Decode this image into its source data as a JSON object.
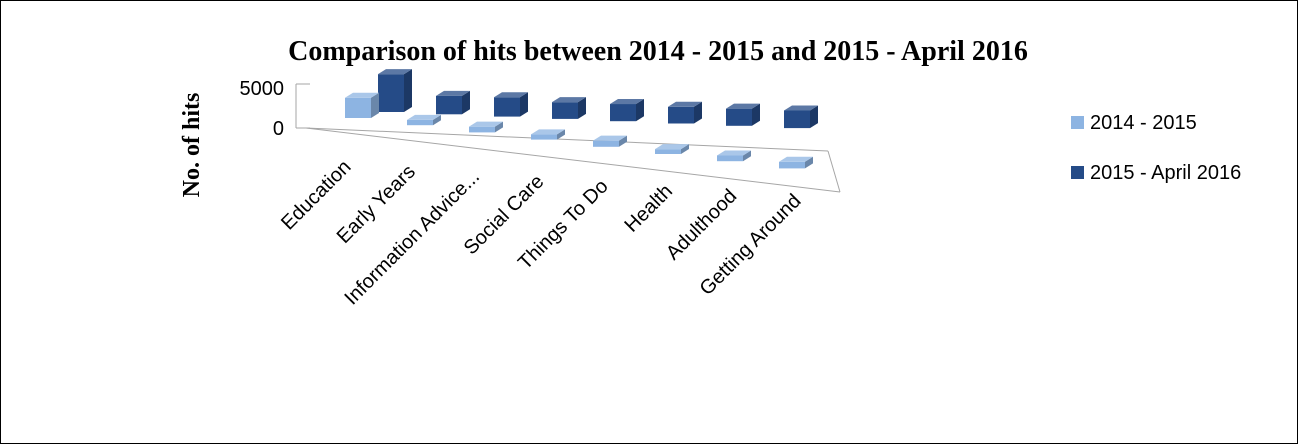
{
  "chart_data": {
    "type": "bar",
    "subtype": "3d-column-clustered-depth",
    "title": "Comparison of hits between 2014 - 2015 and 2015 - April 2016",
    "ylabel": "No. of hits",
    "xlabel": "",
    "ylim": [
      0,
      5000
    ],
    "yticks": [
      "5000",
      "0"
    ],
    "categories": [
      "Education",
      "Early Years",
      "Information Advice...",
      "Social Care",
      "Things To Do",
      "Health",
      "Adulthood",
      "Getting Around"
    ],
    "series": [
      {
        "name": "2014 - 2015",
        "values": [
          2300,
          600,
          650,
          600,
          700,
          550,
          650,
          750
        ],
        "color": "#8db4e2"
      },
      {
        "name": "2015 - April 2016",
        "values": [
          4300,
          2100,
          2200,
          1900,
          1950,
          1900,
          1950,
          2000
        ],
        "color": "#254b87"
      }
    ],
    "legend_position": "right",
    "grid": false
  }
}
